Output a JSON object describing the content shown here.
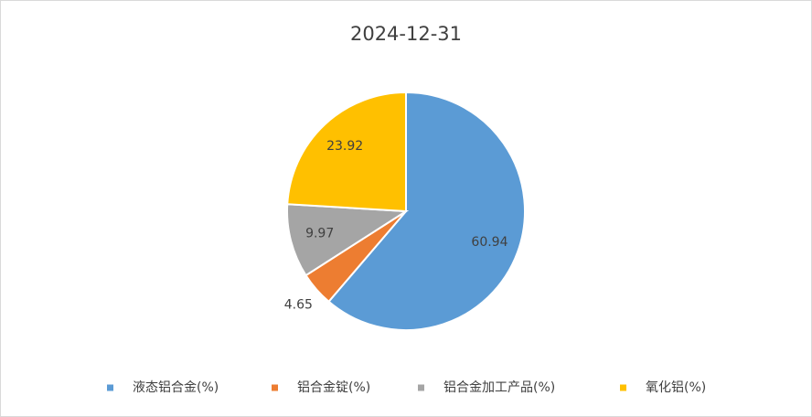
{
  "chart_data": {
    "type": "pie",
    "title": "2024-12-31",
    "categories": [
      "液态铝合金(%)",
      "铝合金锭(%)",
      "铝合金加工产品(%)",
      "氧化铝(%)"
    ],
    "values": [
      60.94,
      4.65,
      9.97,
      23.92
    ],
    "colors": [
      "#5b9bd5",
      "#ed7d31",
      "#a5a5a5",
      "#ffc000"
    ],
    "legend": "bottom"
  }
}
